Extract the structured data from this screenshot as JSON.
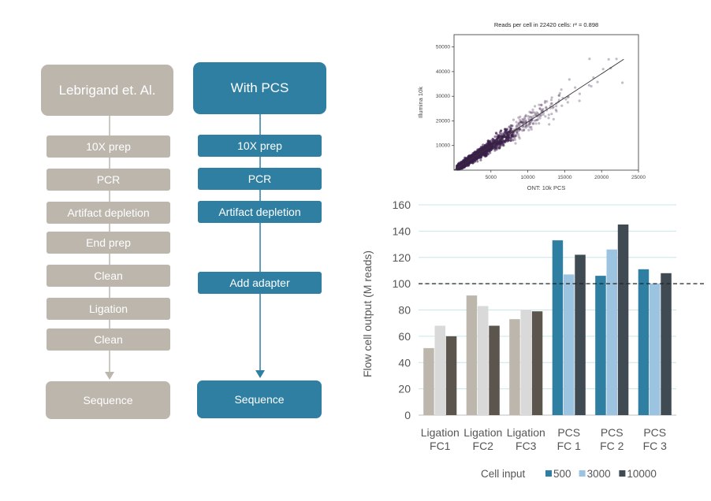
{
  "flow": {
    "left": {
      "title": "Lebrigand et. Al.",
      "steps": [
        "10X prep",
        "PCR",
        "Artifact depletion",
        "End prep",
        "Clean",
        "Ligation",
        "Clean"
      ],
      "final": "Sequence",
      "color": "#bcb6ad"
    },
    "right": {
      "title": "With PCS",
      "steps": [
        "10X prep",
        "PCR",
        "Artifact depletion",
        "Add adapter"
      ],
      "final": "Sequence",
      "color": "#2e7fa2"
    }
  },
  "chart_data": [
    {
      "type": "scatter",
      "title": "Reads per cell in 22420 cells: r² = 0.898",
      "xlabel": "ONT: 10k PCS",
      "ylabel": "Illumina 10k",
      "xlim": [
        0,
        25000
      ],
      "ylim": [
        0,
        55000
      ],
      "xticks": [
        5000,
        10000,
        15000,
        20000,
        25000
      ],
      "yticks": [
        10000,
        20000,
        30000,
        40000,
        50000
      ],
      "fit_line": [
        [
          0,
          0
        ],
        [
          23000,
          45000
        ]
      ],
      "point_color": "#3a1f4a",
      "grid": false
    },
    {
      "type": "bar",
      "ylabel": "Flow cell output (M reads)",
      "ylim": [
        0,
        160
      ],
      "yticks": [
        0,
        20,
        40,
        60,
        80,
        100,
        120,
        140,
        160
      ],
      "categories": [
        "Ligation FC1",
        "Ligation FC2",
        "Ligation FC3",
        "PCS FC 1",
        "PCS FC 2",
        "PCS FC 3"
      ],
      "category_lines": [
        [
          "Ligation",
          "FC1"
        ],
        [
          "Ligation",
          "FC2"
        ],
        [
          "Ligation",
          "FC3"
        ],
        [
          "PCS",
          "FC 1"
        ],
        [
          "PCS",
          "FC 2"
        ],
        [
          "PCS",
          "FC 3"
        ]
      ],
      "legend_title": "Cell input",
      "legend_position": "bottom",
      "reference_line": 100,
      "grid": true,
      "series": [
        {
          "name": "500",
          "values": [
            51,
            91,
            73,
            133,
            106,
            111
          ],
          "colors": [
            "#bcb6ad",
            "#bcb6ad",
            "#bcb6ad",
            "#2e7fa2",
            "#2e7fa2",
            "#2e7fa2"
          ]
        },
        {
          "name": "3000",
          "values": [
            68,
            83,
            80,
            107,
            126,
            100
          ],
          "colors": [
            "#d9d9d9",
            "#d9d9d9",
            "#d9d9d9",
            "#9cc3e0",
            "#9cc3e0",
            "#9cc3e0"
          ]
        },
        {
          "name": "10000",
          "values": [
            60,
            68,
            79,
            122,
            145,
            108
          ],
          "colors": [
            "#5c554e",
            "#5c554e",
            "#5c554e",
            "#3f4a53",
            "#3f4a53",
            "#3f4a53"
          ]
        }
      ],
      "legend_colors": [
        "#2e7fa2",
        "#9cc3e0",
        "#3f4a53"
      ]
    }
  ]
}
